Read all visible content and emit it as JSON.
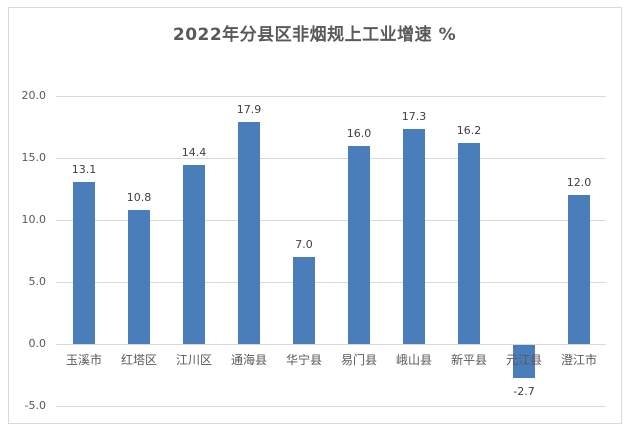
{
  "chart_data": {
    "type": "bar",
    "title": "2022年分县区非烟规上工业增速 %",
    "xlabel": "",
    "ylabel": "",
    "categories": [
      "玉溪市",
      "红塔区",
      "江川区",
      "通海县",
      "华宁县",
      "易门县",
      "峨山县",
      "新平县",
      "元江县",
      "澄江市"
    ],
    "values": [
      13.1,
      10.8,
      14.4,
      17.9,
      7.0,
      16.0,
      17.3,
      16.2,
      -2.7,
      12.0
    ],
    "value_labels": [
      "13.1",
      "10.8",
      "14.4",
      "17.9",
      "7.0",
      "16.0",
      "17.3",
      "16.2",
      "-2.7",
      "12.0"
    ],
    "ylim": [
      -5,
      20
    ],
    "yticks": [
      "20.0",
      "15.0",
      "10.0",
      "5.0",
      "0.0",
      "-5.0"
    ],
    "grid": true,
    "legend": "none",
    "bar_color": "#4a7ebb"
  }
}
